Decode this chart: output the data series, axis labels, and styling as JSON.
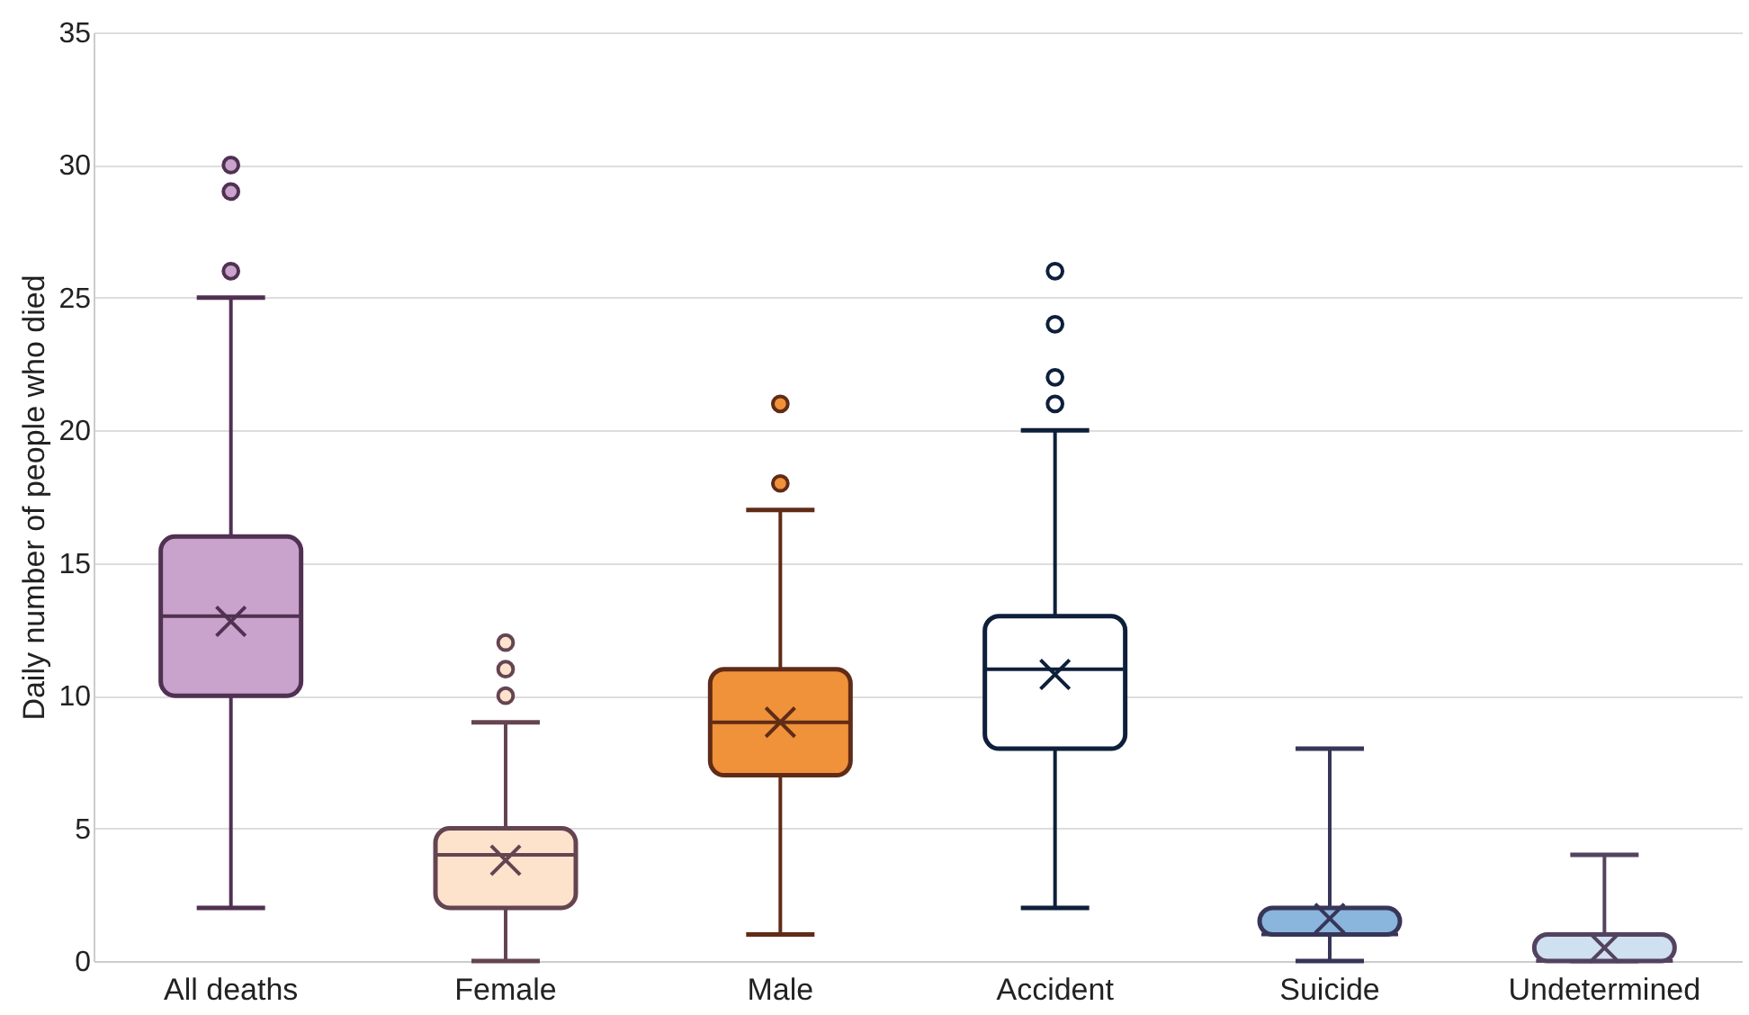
{
  "chart_data": {
    "type": "box",
    "ylabel": "Daily number of people who died",
    "categories": [
      "All deaths",
      "Female",
      "Male",
      "Accident",
      "Suicide",
      "Undetermined"
    ],
    "boxes": [
      {
        "low": 2,
        "q1": 10,
        "median": 13,
        "q3": 16,
        "high": 25,
        "mean": 12.8,
        "outliers": [
          26,
          29,
          30
        ]
      },
      {
        "low": 0,
        "q1": 2,
        "median": 4,
        "q3": 5,
        "high": 9,
        "mean": 3.8,
        "outliers": [
          10,
          11,
          12
        ]
      },
      {
        "low": 1,
        "q1": 7,
        "median": 9,
        "q3": 11,
        "high": 17,
        "mean": 9,
        "outliers": [
          18,
          21
        ]
      },
      {
        "low": 2,
        "q1": 8,
        "median": 11,
        "q3": 13,
        "high": 20,
        "mean": 10.8,
        "outliers": [
          21,
          22,
          24,
          26
        ]
      },
      {
        "low": 0,
        "q1": 1,
        "median": 1,
        "q3": 2,
        "high": 8,
        "mean": 1.6
      },
      {
        "low": 0,
        "q1": 0,
        "median": 0,
        "q3": 1,
        "high": 4,
        "mean": 0.5
      }
    ],
    "colors": [
      "#c9a3cc",
      "#fde3cc",
      "#f0923a",
      "#ffffff",
      "#8ab5dc",
      "#cfe0f0"
    ],
    "ylim": [
      0,
      35
    ],
    "yticks": [
      0,
      5,
      10,
      15,
      20,
      25,
      30,
      35
    ],
    "grid": "y",
    "marker": "circle"
  }
}
